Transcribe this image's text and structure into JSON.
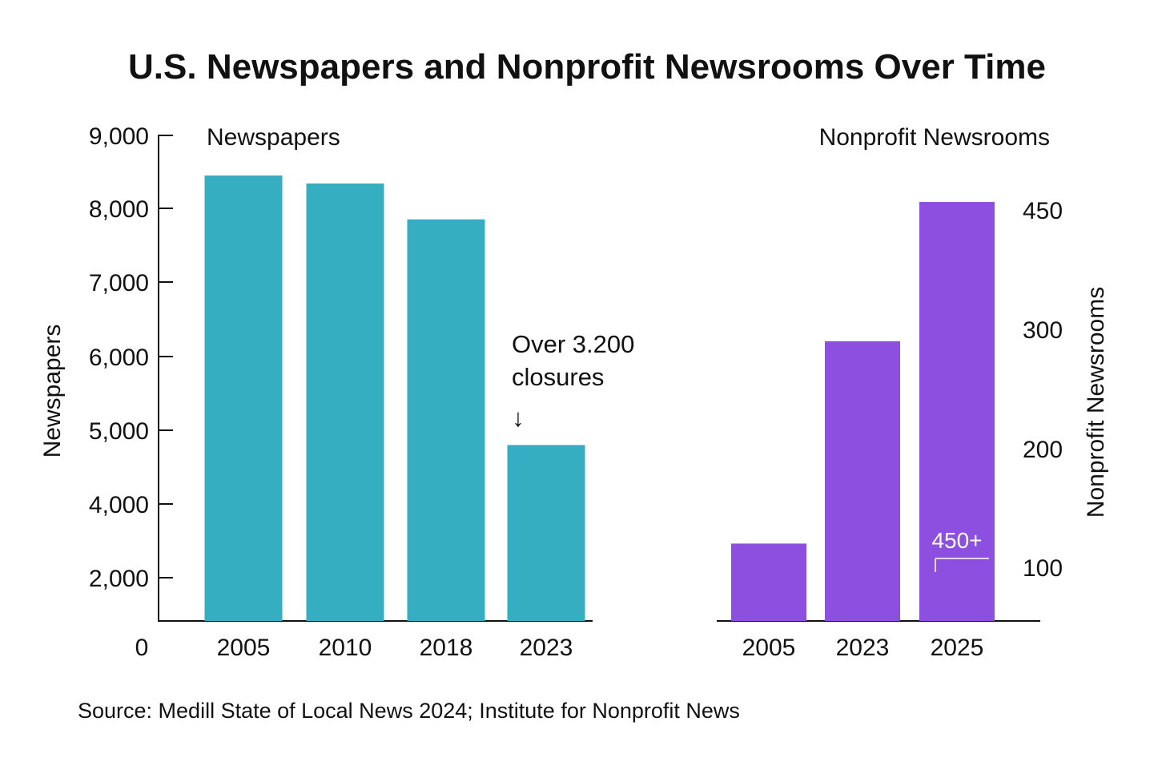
{
  "chart_data": {
    "type": "bar",
    "title": "U.S. Newspapers and Nonprofit Newsrooms Over Time",
    "source": "Source: Medill State of Local News 2024; Institute for Nonprofit News",
    "colors": {
      "newspapers": "#34aec0",
      "nonprofit": "#8c4fe0",
      "text": "#111111",
      "axis": "#111111"
    },
    "panels": [
      {
        "id": "newspapers",
        "heading": "Newspapers",
        "ylabel": "Newspapers",
        "categories": [
          "2005",
          "2010",
          "2018",
          "2023"
        ],
        "values": [
          8450,
          8340,
          7850,
          4800
        ],
        "y_ticks": [
          {
            "value": 9000,
            "label": "9,000"
          },
          {
            "value": 8000,
            "label": "8,000"
          },
          {
            "value": 7000,
            "label": "7,000"
          },
          {
            "value": 6000,
            "label": "6,000"
          },
          {
            "value": 5000,
            "label": "5,000"
          },
          {
            "value": 4000,
            "label": "4,000"
          },
          {
            "value": 2000,
            "label": "2,000"
          },
          {
            "value": 0,
            "label": "0"
          }
        ],
        "annotation": {
          "lines": [
            "Over 3.200",
            "closures"
          ],
          "arrow": "↓",
          "category": "2023"
        }
      },
      {
        "id": "nonprofit",
        "heading": "Nonprofit Newsrooms",
        "ylabel": "Nonprofit Newsrooms",
        "categories": [
          "2005",
          "2023",
          "2025"
        ],
        "values": [
          120,
          290,
          460
        ],
        "y_ticks": [
          {
            "value": 450,
            "label": "450"
          },
          {
            "value": 300,
            "label": "300"
          },
          {
            "value": 200,
            "label": "200"
          },
          {
            "value": 100,
            "label": "100"
          }
        ],
        "bar_label": {
          "text": "450+",
          "category": "2025"
        }
      }
    ]
  }
}
